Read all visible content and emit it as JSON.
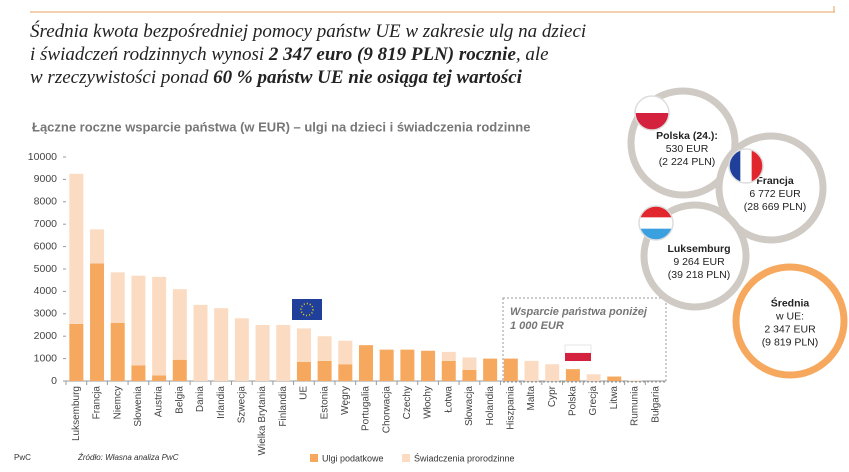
{
  "chart_data": {
    "type": "stacked_bar",
    "title_lines": [
      [
        {
          "text": "Średnia kwota bezpośredniej pomocy państw UE w zakresie ulg na dzieci",
          "bold": false
        }
      ],
      [
        {
          "text": "i świadczeń rodzinnych wynosi ",
          "bold": false
        },
        {
          "text": "2 347 euro (9 819 PLN) rocznie",
          "bold": true
        },
        {
          "text": ", ale",
          "bold": false
        }
      ],
      [
        {
          "text": "w rzeczywistości ponad ",
          "bold": false
        },
        {
          "text": "60 % państw UE nie osiąga tej wartości",
          "bold": true
        }
      ]
    ],
    "subtitle": "Łączne roczne wsparcie państwa (w EUR) – ulgi na dzieci i świadczenia rodzinne",
    "categories": [
      "Luksemburg",
      "Francja",
      "Niemcy",
      "Słowenia",
      "Austria",
      "Belgia",
      "Dania",
      "Irlandia",
      "Szwecja",
      "Wielka Brytania",
      "Finlandia",
      "UE",
      "Estonia",
      "Węgry",
      "Portugalia",
      "Chorwacja",
      "Czechy",
      "Włochy",
      "Łotwa",
      "Słowacja",
      "Holandia",
      "Hiszpania",
      "Malta",
      "Cypr",
      "Polska",
      "Grecja",
      "Litwa",
      "Rumunia",
      "Bułgaria"
    ],
    "series": [
      {
        "name": "Ulgi podatkowe",
        "color": "#f6a95e",
        "values": [
          2550,
          5250,
          2600,
          700,
          250,
          950,
          0,
          0,
          0,
          0,
          0,
          850,
          900,
          750,
          1600,
          1400,
          1400,
          1350,
          900,
          500,
          1000,
          1000,
          0,
          0,
          530,
          0,
          200,
          0,
          0
        ]
      },
      {
        "name": "Świadczenia prorodzinne",
        "color": "#fbdcc2",
        "values": [
          6700,
          1520,
          2250,
          4000,
          4400,
          3150,
          3400,
          3250,
          2800,
          2500,
          2500,
          1497,
          1100,
          1050,
          0,
          0,
          0,
          0,
          400,
          550,
          0,
          0,
          900,
          750,
          0,
          300,
          0,
          30,
          0
        ]
      }
    ],
    "ylim": [
      0,
      10000
    ],
    "yticks": [
      0,
      1000,
      2000,
      3000,
      4000,
      5000,
      6000,
      7000,
      8000,
      9000,
      10000
    ],
    "annotation": [
      "Wsparcie państwa poniżej",
      "1 000 EUR"
    ],
    "callouts": [
      {
        "lines": [
          "Polska (24.):",
          "530 EUR",
          "(2 224 PLN)"
        ],
        "highlight": false
      },
      {
        "lines": [
          "Francja",
          "6 772 EUR",
          "(28 669 PLN)"
        ],
        "highlight": false
      },
      {
        "lines": [
          "Luksemburg",
          "9 264 EUR",
          "(39 218 PLN)"
        ],
        "highlight": false
      },
      {
        "lines": [
          "Średnia",
          "w UE:",
          "2 347 EUR",
          "(9 819 PLN)"
        ],
        "highlight": true
      }
    ],
    "footer": "PwC",
    "source": "Źródło: Własna analiza PwC"
  }
}
